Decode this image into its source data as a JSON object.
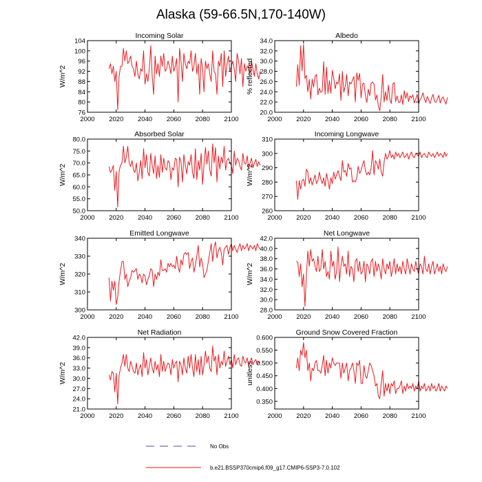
{
  "figure": {
    "title": "Alaska (59-66.5N,170-140W)",
    "legend": [
      {
        "label": "No Obs",
        "style": "dashed",
        "color": "#6a3d9a"
      },
      {
        "label": "b.e21.BSSP370cmip6.f09_g17.CMIP6-SSP3-7.0.102",
        "style": "solid",
        "color": "#e8191e"
      }
    ]
  },
  "chart_data": [
    {
      "type": "line",
      "title": "Incoming Solar",
      "ylabel": "W/m^2",
      "xlim": [
        2000,
        2100
      ],
      "ylim": [
        76,
        104
      ],
      "xticks": [
        2000,
        2020,
        2040,
        2060,
        2080,
        2100
      ],
      "yticks": [
        76,
        80,
        84,
        88,
        92,
        96,
        100,
        104
      ],
      "ydec": 0,
      "x_start": 2015,
      "values": [
        93,
        95,
        91,
        94,
        88,
        92,
        77,
        90,
        94,
        94,
        101,
        96,
        100,
        95,
        96,
        98,
        94,
        93,
        90,
        96,
        91,
        89,
        93,
        92,
        100,
        87,
        91,
        88,
        93,
        102,
        90,
        83,
        98,
        91,
        95,
        90,
        98,
        94,
        99,
        92,
        93,
        96,
        94,
        91,
        98,
        92,
        94,
        97,
        80,
        101,
        96,
        88,
        99,
        95,
        93,
        96,
        95,
        100,
        92,
        94,
        99,
        91,
        95,
        83,
        97,
        93,
        84,
        96,
        93,
        95,
        91,
        88,
        100,
        92,
        91,
        83,
        96,
        94,
        99,
        86,
        100,
        90,
        95,
        98,
        92,
        94,
        96,
        93,
        88,
        99,
        96,
        91,
        97,
        86,
        95,
        92,
        94,
        94,
        91,
        96,
        93,
        90,
        95,
        91,
        89,
        92
      ]
    },
    {
      "type": "line",
      "title": "Albedo",
      "ylabel": "% reflected",
      "xlim": [
        2000,
        2100
      ],
      "ylim": [
        20,
        34
      ],
      "xticks": [
        2000,
        2020,
        2040,
        2060,
        2080,
        2100
      ],
      "yticks": [
        20,
        22,
        24,
        26,
        28,
        30,
        32,
        34
      ],
      "ydec": 1,
      "x_start": 2015,
      "values": [
        25.0,
        29.3,
        25.3,
        33.0,
        28.1,
        33.3,
        26.6,
        27.2,
        24.0,
        26.4,
        22.6,
        26.5,
        24.9,
        27.0,
        27.4,
        23.4,
        24.7,
        23.9,
        24.1,
        29.9,
        23.5,
        28.8,
        23.7,
        26.2,
        23.7,
        28.2,
        26.6,
        24.6,
        25.9,
        25.5,
        27.5,
        22.3,
        28.0,
        23.9,
        25.1,
        27.4,
        23.2,
        25.9,
        25.5,
        26.3,
        27.0,
        22.0,
        27.7,
        26.2,
        27.6,
        22.8,
        25.5,
        25.7,
        23.2,
        21.9,
        24.5,
        23.2,
        25.7,
        25.9,
        25.5,
        22.4,
        23.4,
        21.2,
        20.3,
        23.0,
        27.4,
        22.0,
        24.0,
        22.3,
        25.3,
        22.5,
        21.7,
        25.5,
        25.8,
        22.1,
        23.2,
        22.0,
        21.9,
        23.4,
        21.5,
        24.2,
        22.7,
        23.8,
        22.1,
        23.2,
        22.8,
        23.4,
        21.8,
        22.6,
        23.5,
        21.6,
        22.5,
        22.9,
        23.8,
        22.6,
        21.9,
        23.1,
        22.4,
        21.7,
        22.8,
        23.5,
        22.1,
        21.9,
        22.6,
        23.3,
        21.8,
        22.7,
        23.0,
        22.2,
        21.6,
        22.9
      ]
    },
    {
      "type": "line",
      "title": "Absorbed Solar",
      "ylabel": "W/m^2",
      "xlim": [
        2000,
        2100
      ],
      "ylim": [
        50,
        80
      ],
      "xticks": [
        2000,
        2020,
        2040,
        2060,
        2080,
        2100
      ],
      "yticks": [
        50,
        55,
        60,
        65,
        70,
        75,
        80
      ],
      "ydec": 1,
      "x_start": 2015,
      "values": [
        68.5,
        66.0,
        67.0,
        69.0,
        58.5,
        66.5,
        51.5,
        66.5,
        69.0,
        70.0,
        77.0,
        70.0,
        72.5,
        77.0,
        70.0,
        68.5,
        71.0,
        67.0,
        66.0,
        70.0,
        62.5,
        66.0,
        71.0,
        63.5,
        76.0,
        68.0,
        73.5,
        66.0,
        64.5,
        74.0,
        69.0,
        65.5,
        73.0,
        63.5,
        69.0,
        64.0,
        73.5,
        66.0,
        72.0,
        68.0,
        67.0,
        71.0,
        70.0,
        63.0,
        68.0,
        67.0,
        72.0,
        71.5,
        60.0,
        72.5,
        70.5,
        62.0,
        73.5,
        69.0,
        65.5,
        70.5,
        69.0,
        73.5,
        66.0,
        63.5,
        76.0,
        63.0,
        71.0,
        67.0,
        74.0,
        61.0,
        69.5,
        76.5,
        69.5,
        75.0,
        67.0,
        64.5,
        78.0,
        70.0,
        76.5,
        62.0,
        73.0,
        67.5,
        72.5,
        70.0,
        77.0,
        67.0,
        71.0,
        72.0,
        70.0,
        69.0,
        65.5,
        75.0,
        69.0,
        72.0,
        71.0,
        68.5,
        67.0,
        74.0,
        70.0,
        69.5,
        73.0,
        67.5,
        70.0,
        72.0,
        68.0,
        70.0,
        71.5,
        68.5,
        70.5,
        69.0
      ]
    },
    {
      "type": "line",
      "title": "Incoming Longwave",
      "ylabel": "W/m^2",
      "xlim": [
        2000,
        2100
      ],
      "ylim": [
        260,
        310
      ],
      "xticks": [
        2000,
        2020,
        2040,
        2060,
        2080,
        2100
      ],
      "yticks": [
        260,
        270,
        280,
        290,
        300,
        310
      ],
      "ydec": 0,
      "x_start": 2015,
      "values": [
        281,
        268,
        281,
        275,
        281,
        282,
        277,
        289,
        287,
        279,
        283,
        278,
        281,
        285,
        279,
        281,
        287,
        282,
        279,
        283,
        277,
        286,
        281,
        275,
        283,
        279,
        287,
        282,
        285,
        288,
        284,
        281,
        295,
        287,
        288,
        284,
        293,
        289,
        290,
        280,
        281,
        280,
        283,
        291,
        286,
        288,
        292,
        295,
        288,
        285,
        287,
        285,
        290,
        302,
        285,
        295,
        293,
        289,
        296,
        287,
        284,
        294,
        300,
        296,
        298,
        302,
        297,
        299,
        296,
        301,
        298,
        300,
        297,
        299,
        301,
        297,
        298,
        300,
        296,
        299,
        301,
        298,
        297,
        300,
        299,
        298,
        301,
        297,
        299,
        300,
        298,
        297,
        301,
        299,
        298,
        300,
        297,
        299,
        301,
        298,
        300,
        299,
        297,
        301,
        298,
        300
      ]
    },
    {
      "type": "line",
      "title": "Emitted Longwave",
      "ylabel": "W/m^2",
      "xlim": [
        2000,
        2100
      ],
      "ylim": [
        300,
        340
      ],
      "xticks": [
        2000,
        2020,
        2040,
        2060,
        2080,
        2100
      ],
      "yticks": [
        300,
        310,
        320,
        330,
        340
      ],
      "ydec": 0,
      "x_start": 2015,
      "values": [
        318,
        305,
        316,
        311,
        316,
        303,
        307,
        316,
        322,
        327,
        327,
        317,
        320,
        313,
        316,
        318,
        322,
        321,
        322,
        323,
        317,
        320,
        319,
        315,
        320,
        319,
        314,
        317,
        319,
        323,
        322,
        313,
        320,
        317,
        321,
        319,
        328,
        322,
        322,
        323,
        321,
        326,
        324,
        326,
        324,
        325,
        323,
        330,
        324,
        321,
        328,
        325,
        331,
        332,
        331,
        332,
        323,
        327,
        329,
        321,
        325,
        330,
        336,
        324,
        329,
        326,
        318,
        320,
        322,
        327,
        332,
        337,
        327,
        335,
        338,
        329,
        333,
        335,
        332,
        325,
        334,
        335,
        336,
        331,
        335,
        337,
        333,
        336,
        334,
        332,
        335,
        337,
        333,
        336,
        334,
        335,
        337,
        333,
        336,
        335,
        334,
        336,
        333,
        337,
        335,
        334
      ]
    },
    {
      "type": "line",
      "title": "Net Longwave",
      "ylabel": "W/m^2",
      "xlim": [
        2000,
        2100
      ],
      "ylim": [
        28,
        42
      ],
      "xticks": [
        2000,
        2020,
        2040,
        2060,
        2080,
        2100
      ],
      "yticks": [
        28,
        30,
        32,
        34,
        36,
        38,
        40,
        42
      ],
      "ydec": 1,
      "x_start": 2015,
      "values": [
        37.5,
        37.3,
        34.5,
        37.0,
        32.5,
        35.0,
        28.7,
        34.7,
        39.5,
        36.5,
        39.8,
        37.5,
        38.0,
        36.5,
        35.5,
        38.5,
        35.5,
        36.0,
        39.8,
        36.0,
        37.5,
        34.5,
        35.5,
        34.0,
        39.5,
        36.5,
        37.5,
        34.0,
        35.5,
        40.3,
        33.5,
        36.5,
        38.5,
        36.5,
        37.0,
        35.0,
        39.5,
        34.5,
        36.5,
        36.0,
        33.5,
        37.5,
        38.0,
        35.5,
        37.5,
        35.0,
        35.5,
        37.5,
        33.5,
        37.0,
        36.5,
        35.0,
        37.5,
        38.0,
        34.5,
        37.5,
        35.5,
        37.0,
        36.0,
        34.0,
        38.0,
        36.0,
        35.0,
        37.0,
        36.0,
        37.5,
        34.5,
        36.0,
        38.0,
        35.0,
        37.0,
        35.5,
        36.5,
        35.0,
        37.5,
        36.0,
        35.0,
        38.0,
        36.5,
        35.0,
        37.0,
        36.0,
        35.5,
        37.5,
        36.0,
        35.0,
        37.0,
        36.5,
        35.0,
        38.5,
        36.0,
        35.5,
        37.0,
        35.0,
        36.5,
        37.5,
        35.0,
        36.0,
        37.0,
        35.5,
        36.5,
        35.0,
        37.0,
        36.0,
        35.5,
        36.5
      ]
    },
    {
      "type": "line",
      "title": "Net Radiation",
      "ylabel": "W/m^2",
      "xlim": [
        2000,
        2100
      ],
      "ylim": [
        21,
        42
      ],
      "xticks": [
        2000,
        2020,
        2040,
        2060,
        2080,
        2100
      ],
      "yticks": [
        21,
        24,
        27,
        30,
        33,
        36,
        39,
        42
      ],
      "ydec": 1,
      "x_start": 2015,
      "values": [
        31.0,
        29.5,
        32.0,
        31.5,
        26.0,
        31.5,
        22.5,
        31.0,
        33.0,
        34.5,
        37.0,
        33.5,
        37.0,
        33.0,
        32.0,
        35.0,
        33.5,
        32.0,
        31.5,
        34.5,
        31.0,
        33.0,
        34.0,
        30.5,
        37.5,
        33.0,
        35.5,
        31.0,
        33.5,
        36.0,
        33.0,
        31.5,
        35.0,
        32.5,
        34.0,
        30.5,
        37.0,
        32.0,
        35.0,
        32.0,
        33.5,
        34.5,
        34.0,
        31.0,
        35.5,
        33.0,
        34.5,
        35.0,
        29.0,
        35.0,
        34.0,
        31.0,
        36.0,
        33.0,
        31.5,
        36.5,
        33.0,
        37.0,
        33.0,
        30.5,
        37.0,
        32.0,
        35.5,
        31.0,
        36.5,
        31.0,
        34.0,
        38.0,
        34.5,
        36.5,
        33.0,
        32.0,
        39.5,
        35.0,
        36.5,
        31.0,
        37.0,
        33.0,
        35.0,
        34.0,
        38.0,
        33.5,
        35.0,
        36.5,
        34.0,
        35.5,
        33.0,
        37.0,
        34.0,
        35.5,
        36.0,
        34.0,
        33.5,
        36.5,
        35.0,
        34.5,
        36.0,
        33.5,
        35.0,
        36.0,
        34.0,
        35.0,
        35.5,
        34.0,
        35.0,
        34.5
      ]
    },
    {
      "type": "line",
      "title": "Ground Snow Covered Fraction",
      "ylabel": "unitless",
      "xlim": [
        2000,
        2100
      ],
      "ylim": [
        0.32,
        0.6
      ],
      "xticks": [
        2000,
        2020,
        2040,
        2060,
        2080,
        2100
      ],
      "yticks": [
        0.35,
        0.4,
        0.45,
        0.5,
        0.55,
        0.6
      ],
      "ydec": 3,
      "x_start": 2015,
      "values": [
        0.48,
        0.52,
        0.47,
        0.55,
        0.53,
        0.58,
        0.52,
        0.55,
        0.47,
        0.5,
        0.43,
        0.48,
        0.47,
        0.5,
        0.51,
        0.47,
        0.47,
        0.46,
        0.49,
        0.53,
        0.45,
        0.51,
        0.46,
        0.5,
        0.48,
        0.52,
        0.5,
        0.49,
        0.5,
        0.5,
        0.5,
        0.44,
        0.5,
        0.46,
        0.48,
        0.5,
        0.43,
        0.47,
        0.48,
        0.5,
        0.47,
        0.42,
        0.5,
        0.49,
        0.51,
        0.42,
        0.42,
        0.49,
        0.45,
        0.44,
        0.47,
        0.5,
        0.49,
        0.47,
        0.45,
        0.41,
        0.42,
        0.37,
        0.36,
        0.42,
        0.47,
        0.37,
        0.42,
        0.39,
        0.42,
        0.38,
        0.42,
        0.41,
        0.43,
        0.38,
        0.4,
        0.4,
        0.41,
        0.43,
        0.38,
        0.41,
        0.39,
        0.42,
        0.4,
        0.41,
        0.4,
        0.42,
        0.39,
        0.41,
        0.4,
        0.43,
        0.39,
        0.41,
        0.4,
        0.42,
        0.39,
        0.4,
        0.41,
        0.39,
        0.42,
        0.4,
        0.41,
        0.39,
        0.4,
        0.42,
        0.39,
        0.41,
        0.4,
        0.39,
        0.41,
        0.4
      ]
    }
  ]
}
